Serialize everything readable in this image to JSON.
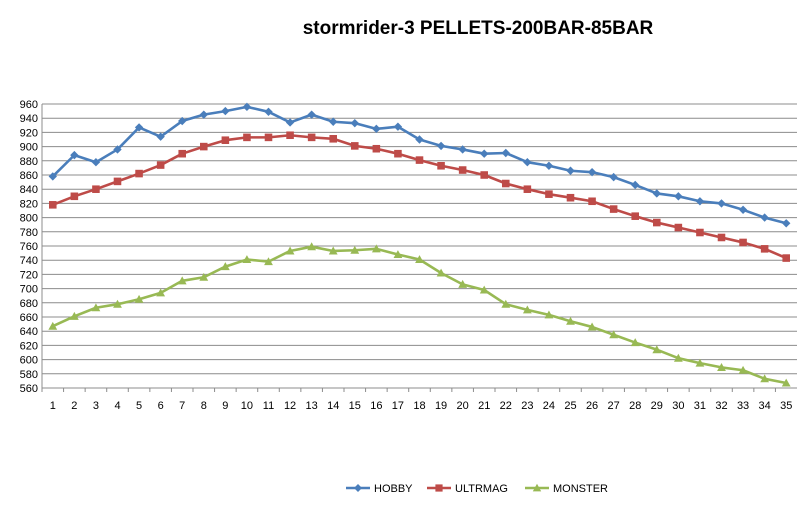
{
  "chart_data": {
    "type": "line",
    "title": "stormrider-3 PELLETS-200BAR-85BAR",
    "xlabel": "",
    "ylabel": "",
    "categories": [
      "1",
      "2",
      "3",
      "4",
      "5",
      "6",
      "7",
      "8",
      "9",
      "10",
      "11",
      "12",
      "13",
      "14",
      "15",
      "16",
      "17",
      "18",
      "19",
      "20",
      "21",
      "22",
      "23",
      "24",
      "25",
      "26",
      "27",
      "28",
      "29",
      "30",
      "31",
      "32",
      "33",
      "34",
      "35"
    ],
    "ylim": [
      560,
      960
    ],
    "yticks": [
      "560",
      "580",
      "600",
      "620",
      "640",
      "660",
      "680",
      "700",
      "720",
      "740",
      "760",
      "780",
      "800",
      "820",
      "840",
      "860",
      "880",
      "900",
      "920",
      "940",
      "960"
    ],
    "grid": "horizontal",
    "legend": "bottom",
    "series": [
      {
        "name": "HOBBY",
        "color": "#4A7EBB",
        "marker": "diamond",
        "values": [
          858,
          888,
          878,
          896,
          927,
          914,
          936,
          945,
          950,
          956,
          949,
          934,
          945,
          935,
          933,
          925,
          928,
          910,
          901,
          896,
          890,
          891,
          878,
          873,
          866,
          864,
          857,
          846,
          834,
          830,
          823,
          820,
          811,
          800,
          792
        ]
      },
      {
        "name": "ULTRMAG",
        "color": "#BE4B48",
        "marker": "square",
        "values": [
          818,
          830,
          840,
          851,
          862,
          874,
          890,
          900,
          909,
          913,
          913,
          916,
          913,
          911,
          901,
          897,
          890,
          881,
          873,
          867,
          860,
          848,
          840,
          833,
          828,
          823,
          812,
          802,
          793,
          786,
          779,
          772,
          765,
          756,
          743
        ]
      },
      {
        "name": "MONSTER",
        "color": "#98B954",
        "marker": "triangle",
        "values": [
          647,
          661,
          673,
          678,
          685,
          694,
          711,
          716,
          731,
          741,
          738,
          753,
          759,
          753,
          754,
          756,
          748,
          741,
          722,
          706,
          698,
          678,
          670,
          663,
          654,
          646,
          635,
          624,
          614,
          602,
          595,
          589,
          585,
          573,
          567
        ]
      }
    ]
  }
}
